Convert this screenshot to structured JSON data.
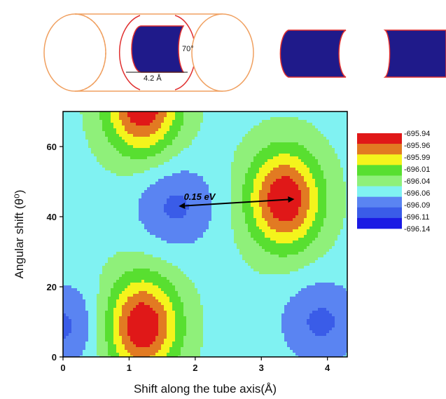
{
  "diagram": {
    "angle_label": "70°",
    "length_label": "4.2 Å"
  },
  "chart_data": {
    "type": "heatmap",
    "xlabel": "Shift along the tube axis(Å)",
    "ylabel": "Angular shift (θ⁰)",
    "xlim": [
      0,
      4.3
    ],
    "ylim": [
      0,
      70
    ],
    "xticks": [
      0,
      1,
      2,
      3,
      4
    ],
    "yticks": [
      0,
      20,
      40,
      60
    ],
    "colorbar": {
      "levels": [
        "-695.94",
        "-695.96",
        "-695.99",
        "-696.01",
        "-696.04",
        "-696.06",
        "-696.09",
        "-696.11",
        "-696.14"
      ],
      "colors": [
        "#e01818",
        "#e27a22",
        "#f4f41c",
        "#58df30",
        "#8ff07a",
        "#80f2f2",
        "#5a84f2",
        "#3a5ce8",
        "#1a1ae4"
      ]
    },
    "annotation": {
      "text": "0.15 eV",
      "from": [
        1.75,
        43
      ],
      "to": [
        3.5,
        45
      ]
    },
    "features": [
      {
        "kind": "maximum",
        "x": 1.2,
        "y": 9
      },
      {
        "kind": "maximum",
        "x": 3.35,
        "y": 45
      },
      {
        "kind": "maximum",
        "x": 1.2,
        "y": 72
      },
      {
        "kind": "minimum",
        "x": 1.7,
        "y": 43
      },
      {
        "kind": "minimum",
        "x": 3.9,
        "y": 10
      },
      {
        "kind": "minimum",
        "x": 0.0,
        "y": 9
      }
    ]
  }
}
